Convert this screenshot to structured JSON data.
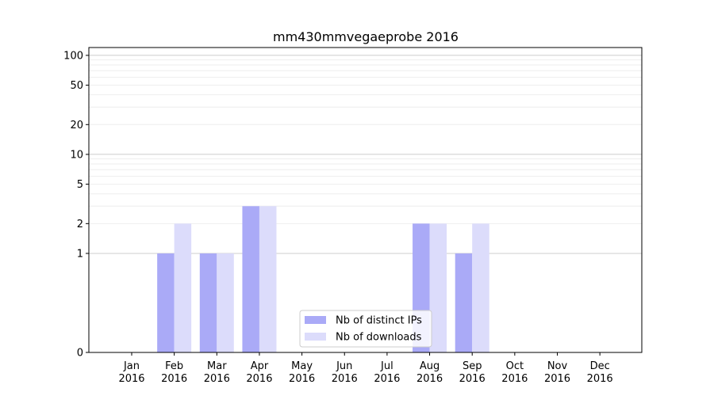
{
  "chart_data": {
    "type": "bar",
    "title": "mm430mmvegaeprobe 2016",
    "xlabel": "",
    "ylabel": "",
    "yscale": "symlog",
    "ylim": [
      0,
      120
    ],
    "grid": "horizontal",
    "legend_position": "lower-center",
    "categories": [
      "Jan\n2016",
      "Feb\n2016",
      "Mar\n2016",
      "Apr\n2016",
      "May\n2016",
      "Jun\n2016",
      "Jul\n2016",
      "Aug\n2016",
      "Sep\n2016",
      "Oct\n2016",
      "Nov\n2016",
      "Dec\n2016"
    ],
    "yticks": [
      0,
      1,
      2,
      5,
      10,
      20,
      50,
      100
    ],
    "series": [
      {
        "name": "Nb of distinct IPs",
        "color": "#aaaaf7",
        "values": [
          0,
          1,
          1,
          3,
          0,
          0,
          0,
          2,
          1,
          0,
          0,
          0
        ]
      },
      {
        "name": "Nb of downloads",
        "color": "#dcdcfb",
        "values": [
          0,
          2,
          1,
          3,
          0,
          0,
          0,
          2,
          2,
          0,
          0,
          0
        ]
      }
    ]
  }
}
